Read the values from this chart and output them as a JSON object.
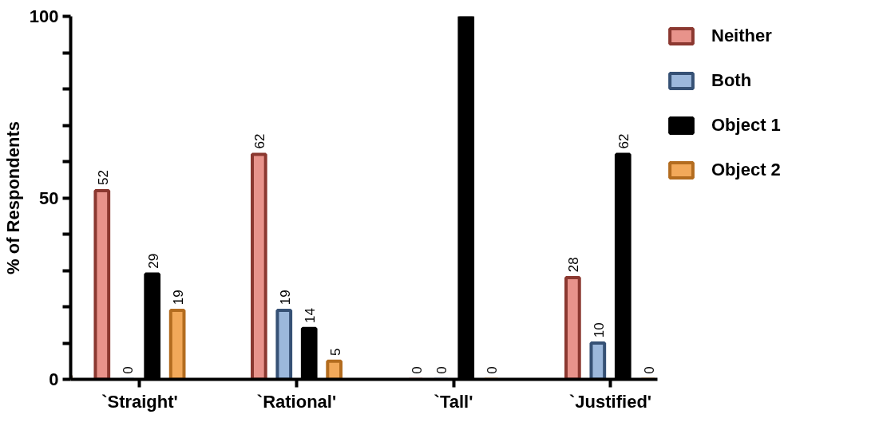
{
  "chart_data": {
    "type": "bar",
    "ylabel": "% of Respondents",
    "categories": [
      "`Straight'",
      "`Rational'",
      "`Tall'",
      "`Justified'"
    ],
    "series": [
      {
        "name": "Neither",
        "color": "#e8938b",
        "values": [
          52,
          62,
          0,
          28
        ],
        "value_labels": [
          "52",
          "62",
          "0",
          "28"
        ]
      },
      {
        "name": "Both",
        "color": "#9cb8dc",
        "values": [
          0,
          19,
          0,
          10
        ],
        "value_labels": [
          "0",
          "19",
          "0",
          "10"
        ]
      },
      {
        "name": "Object 1",
        "color": "#000000",
        "values": [
          29,
          14,
          100,
          62
        ],
        "value_labels": [
          "29",
          "14",
          null,
          "62"
        ]
      },
      {
        "name": "Object 2",
        "color": "#f2a95a",
        "values": [
          19,
          5,
          0,
          0
        ],
        "value_labels": [
          "19",
          "5",
          "0",
          "0"
        ]
      }
    ],
    "ylim": [
      0,
      100
    ],
    "yticks": [
      0,
      {
        "value": 10,
        "label": null
      },
      {
        "value": 20,
        "label": null
      },
      {
        "value": 30,
        "label": null
      },
      {
        "value": 40,
        "label": null
      },
      50,
      {
        "value": 60,
        "label": null
      },
      {
        "value": 70,
        "label": null
      },
      {
        "value": 80,
        "label": null
      },
      {
        "value": 90,
        "label": null
      },
      100
    ],
    "grid": false,
    "legend": "top right"
  }
}
